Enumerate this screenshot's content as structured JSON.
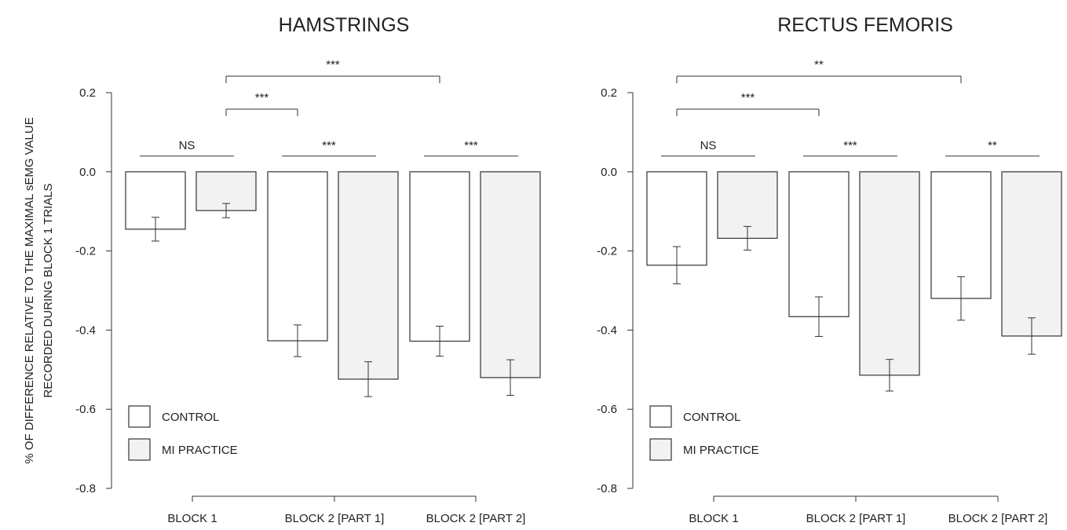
{
  "y_axis_label_lines": [
    "% OF DIFFERENCE RELATIVE TO THE MAXIMAL sEMG VALUE",
    "RECORDED DURING BLOCK 1 TRIALS"
  ],
  "chart_data": [
    {
      "type": "bar",
      "title": "HAMSTRINGS",
      "categories": [
        "BLOCK 1",
        "BLOCK 2 [PART 1]",
        "BLOCK 2 [PART 2]"
      ],
      "ylim": [
        -0.8,
        0.2
      ],
      "yticks": [
        "0.2",
        "0.0",
        "-0.2",
        "-0.4",
        "-0.6",
        "-0.8"
      ],
      "series": [
        {
          "name": "CONTROL",
          "color": "#ffffff",
          "values": [
            -0.145,
            -0.427,
            -0.428
          ],
          "errors": [
            0.03,
            0.04,
            0.038
          ]
        },
        {
          "name": "MI PRACTICE",
          "color": "#f2f2f2",
          "values": [
            -0.098,
            -0.524,
            -0.52
          ],
          "errors": [
            0.018,
            0.044,
            0.045
          ]
        }
      ],
      "significance": [
        {
          "label": "NS",
          "from": [
            0,
            0
          ],
          "to": [
            0,
            1
          ],
          "type": "line",
          "y": -0.055
        },
        {
          "label": "***",
          "from": [
            1,
            0
          ],
          "to": [
            1,
            1
          ],
          "type": "line",
          "y": -0.055
        },
        {
          "label": "***",
          "from": [
            2,
            0
          ],
          "to": [
            2,
            1
          ],
          "type": "line",
          "y": -0.055
        },
        {
          "label": "***",
          "from": [
            0,
            1
          ],
          "to": [
            1,
            0
          ],
          "type": "bracket",
          "y": 0.16
        },
        {
          "label": "***",
          "from": [
            0,
            1
          ],
          "to": [
            2,
            0
          ],
          "type": "bracket",
          "y": 0.24
        }
      ],
      "legend": {
        "position": "bottom-left",
        "entries": [
          "CONTROL",
          "MI PRACTICE"
        ]
      },
      "grid": false
    },
    {
      "type": "bar",
      "title": "RECTUS FEMORIS",
      "categories": [
        "BLOCK 1",
        "BLOCK 2 [PART 1]",
        "BLOCK 2 [PART 2]"
      ],
      "ylim": [
        -0.8,
        0.2
      ],
      "yticks": [
        "0.2",
        "0.0",
        "-0.2",
        "-0.4",
        "-0.6",
        "-0.8"
      ],
      "series": [
        {
          "name": "CONTROL",
          "color": "#ffffff",
          "values": [
            -0.236,
            -0.366,
            -0.32
          ],
          "errors": [
            0.047,
            0.05,
            0.055
          ]
        },
        {
          "name": "MI PRACTICE",
          "color": "#f2f2f2",
          "values": [
            -0.168,
            -0.514,
            -0.415
          ],
          "errors": [
            0.03,
            0.04,
            0.046
          ]
        }
      ],
      "significance": [
        {
          "label": "NS",
          "from": [
            0,
            0
          ],
          "to": [
            0,
            1
          ],
          "type": "line",
          "y": -0.055
        },
        {
          "label": "***",
          "from": [
            1,
            0
          ],
          "to": [
            1,
            1
          ],
          "type": "line",
          "y": -0.055
        },
        {
          "label": "**",
          "from": [
            2,
            0
          ],
          "to": [
            2,
            1
          ],
          "type": "line",
          "y": -0.055
        },
        {
          "label": "***",
          "from": [
            0,
            0
          ],
          "to": [
            1,
            0
          ],
          "type": "bracket",
          "y": 0.16
        },
        {
          "label": "**",
          "from": [
            0,
            0
          ],
          "to": [
            2,
            0
          ],
          "type": "bracket",
          "y": 0.24
        }
      ],
      "legend": {
        "position": "bottom-left",
        "entries": [
          "CONTROL",
          "MI PRACTICE"
        ]
      },
      "grid": false
    }
  ]
}
